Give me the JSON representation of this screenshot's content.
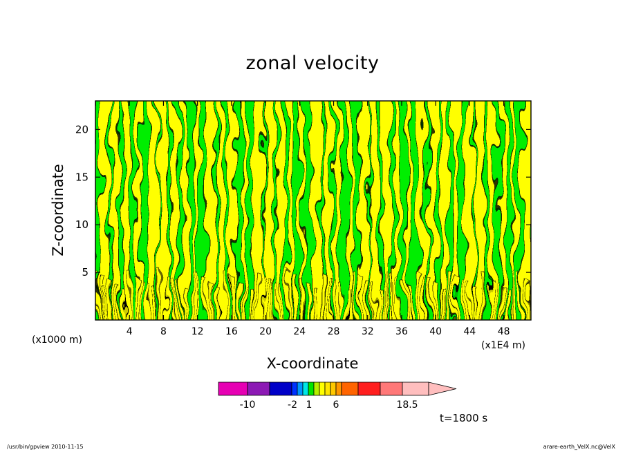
{
  "chart_data": {
    "type": "heatmap",
    "title": "zonal velocity",
    "xlabel": "X-coordinate",
    "ylabel": "Z-coordinate",
    "x_unit_left": "(x1000 m)",
    "x_unit_right": "(x1E4 m)",
    "x_ticks": [
      "4",
      "8",
      "12",
      "16",
      "20",
      "24",
      "28",
      "32",
      "36",
      "40",
      "44",
      "48"
    ],
    "x_tick_values": [
      4,
      8,
      12,
      16,
      20,
      24,
      28,
      32,
      36,
      40,
      44,
      48
    ],
    "xlim": [
      0,
      51.2
    ],
    "y_ticks": [
      "5",
      "10",
      "15",
      "20"
    ],
    "y_tick_values": [
      5,
      10,
      15,
      20
    ],
    "ylim": [
      0,
      23
    ],
    "fill_colors": {
      "positive_band": "#ffff00",
      "negative_band": "#00ee00",
      "contour_line": "#000000"
    },
    "colorbar": {
      "colors": [
        "#e600b3",
        "#8c19b4",
        "#0000c8",
        "#0032ff",
        "#0096ff",
        "#00e6e6",
        "#00e600",
        "#b4f000",
        "#ffff00",
        "#ffe600",
        "#ffc800",
        "#ff9600",
        "#ff6400",
        "#ff1e1e",
        "#ff7878",
        "#ffbebe"
      ],
      "widths": [
        42,
        32,
        32,
        8,
        8,
        8,
        8,
        8,
        8,
        8,
        8,
        8,
        24,
        32,
        32,
        38
      ],
      "labels": [
        "-10",
        "-2",
        "1",
        "6",
        "18.5"
      ],
      "label_positions": [
        8,
        3,
        4,
        1,
        6,
        9,
        11,
        12,
        13,
        16
      ],
      "arrow_color": "#ffbebe"
    },
    "annotation": "t=1800 s"
  },
  "footer": {
    "left": "/usr/bin/gpview   2010-11-15",
    "right": "arare-earth_VelX.nc@VelX"
  }
}
